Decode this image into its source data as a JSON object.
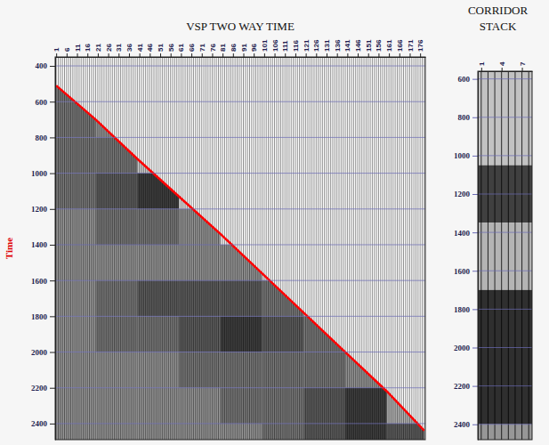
{
  "chart_data": [
    {
      "type": "vsp",
      "title": "VSP TWO WAY TIME",
      "y_label": "Time",
      "traces": 178,
      "xlim": [
        0.5,
        178.5
      ],
      "xticks": [
        1,
        6,
        11,
        16,
        21,
        26,
        31,
        36,
        41,
        46,
        51,
        56,
        61,
        66,
        71,
        76,
        81,
        86,
        91,
        96,
        101,
        106,
        111,
        116,
        121,
        126,
        131,
        136,
        141,
        146,
        151,
        156,
        161,
        166,
        171,
        176
      ],
      "ylim": [
        350,
        2490
      ],
      "yticks": [
        400,
        600,
        800,
        1000,
        1200,
        1400,
        1600,
        1800,
        2000,
        2200,
        2400
      ],
      "grid": true,
      "first_break": {
        "color": "#ff0000",
        "x": [
          1,
          20,
          40,
          60,
          80,
          100,
          120,
          140,
          160,
          178
        ],
        "y": [
          510,
          700,
          920,
          1130,
          1340,
          1560,
          1780,
          2000,
          2220,
          2440
        ]
      },
      "energy": {
        "x_edges": [
          0.5,
          20,
          40,
          60,
          80,
          100,
          120,
          140,
          160,
          178.5
        ],
        "y_edges": [
          350,
          600,
          800,
          1000,
          1200,
          1400,
          1600,
          1800,
          2000,
          2200,
          2400,
          2490
        ],
        "values": [
          [
            0.6,
            0,
            0,
            0,
            0,
            0,
            0,
            0,
            0
          ],
          [
            0.6,
            0.5,
            0,
            0,
            0,
            0,
            0,
            0,
            0
          ],
          [
            0.6,
            0.6,
            0.3,
            0,
            0,
            0,
            0,
            0,
            0
          ],
          [
            0.6,
            0.7,
            0.8,
            0.2,
            0,
            0,
            0,
            0,
            0
          ],
          [
            0.5,
            0.6,
            0.6,
            0.5,
            0.1,
            0,
            0,
            0,
            0
          ],
          [
            0.5,
            0.5,
            0.5,
            0.5,
            0.5,
            0.2,
            0,
            0,
            0
          ],
          [
            0.5,
            0.6,
            0.7,
            0.7,
            0.7,
            0.6,
            0.3,
            0,
            0
          ],
          [
            0.5,
            0.6,
            0.6,
            0.7,
            0.8,
            0.7,
            0.6,
            0.2,
            0
          ],
          [
            0.5,
            0.5,
            0.5,
            0.6,
            0.6,
            0.6,
            0.6,
            0.5,
            0.1
          ],
          [
            0.5,
            0.5,
            0.5,
            0.5,
            0.6,
            0.6,
            0.7,
            0.8,
            0.4
          ],
          [
            0.5,
            0.5,
            0.5,
            0.5,
            0.5,
            0.6,
            0.7,
            0.8,
            0.7
          ]
        ]
      }
    },
    {
      "type": "corridor_stack",
      "title": "CORRIDOR STACK",
      "traces": 8,
      "xlim": [
        0.5,
        8.5
      ],
      "xticks": [
        1,
        4,
        7
      ],
      "ylim": [
        560,
        2480
      ],
      "yticks": [
        600,
        800,
        1000,
        1200,
        1400,
        1600,
        1800,
        2000,
        2200,
        2400
      ],
      "grid": true,
      "energy": {
        "y_edges": [
          560,
          1050,
          1350,
          1700,
          2400,
          2480
        ],
        "values": [
          0.35,
          0.8,
          0.4,
          0.85,
          0.5
        ]
      }
    }
  ]
}
